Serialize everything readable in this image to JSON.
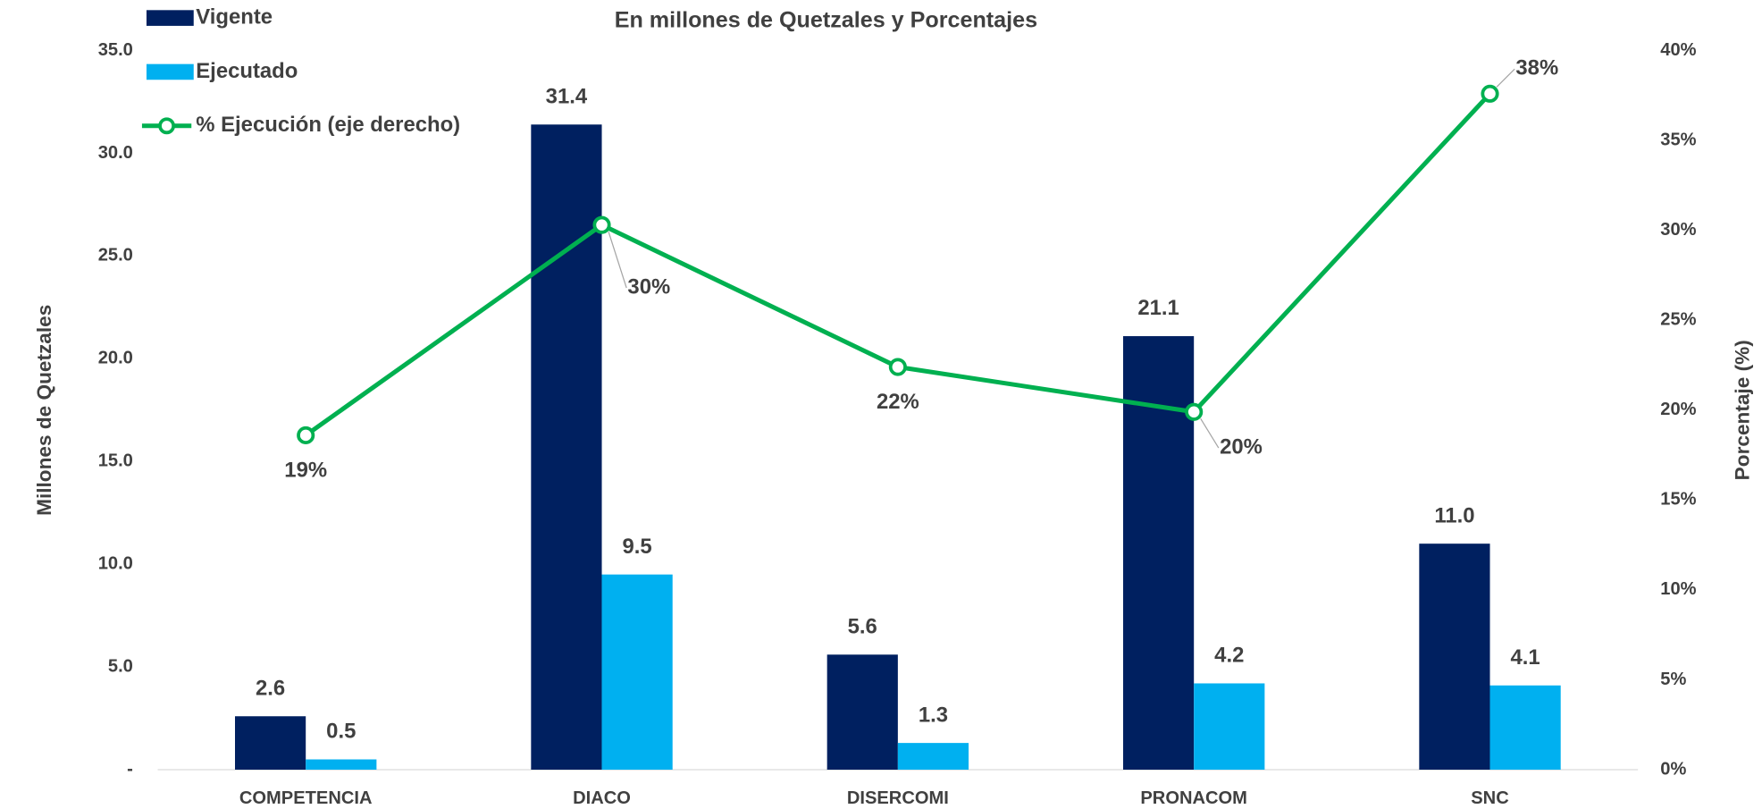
{
  "chart_data": {
    "type": "bar-line",
    "subtitle": "En millones de Quetzales y Porcentajes",
    "y_label": "Millones de Quetzales",
    "y2_label": "Porcentaje (%)",
    "categories": [
      "COMPETENCIA",
      "DIACO",
      "DISERCOMI",
      "PRONACOM",
      "SNC"
    ],
    "ylim": [
      0,
      35
    ],
    "yticks": [
      {
        "value": 0,
        "label": "-"
      },
      {
        "value": 5,
        "label": "5.0"
      },
      {
        "value": 10,
        "label": "10.0"
      },
      {
        "value": 15,
        "label": "15.0"
      },
      {
        "value": 20,
        "label": "20.0"
      },
      {
        "value": 25,
        "label": "25.0"
      },
      {
        "value": 30,
        "label": "30.0"
      },
      {
        "value": 35,
        "label": "35.0"
      }
    ],
    "y2lim": [
      0,
      40
    ],
    "y2ticks": [
      {
        "value": 0,
        "label": "0%"
      },
      {
        "value": 5,
        "label": "5%"
      },
      {
        "value": 10,
        "label": "10%"
      },
      {
        "value": 15,
        "label": "15%"
      },
      {
        "value": 20,
        "label": "20%"
      },
      {
        "value": 25,
        "label": "25%"
      },
      {
        "value": 30,
        "label": "30%"
      },
      {
        "value": 35,
        "label": "35%"
      },
      {
        "value": 40,
        "label": "40%"
      }
    ],
    "legend": "top-left",
    "series": [
      {
        "name": "Vigente",
        "type": "bar",
        "color": "#002060",
        "values": [
          2.6,
          31.4,
          5.6,
          21.1,
          11.0
        ],
        "value_labels": [
          "2.6",
          "31.4",
          "5.6",
          "21.1",
          "11.0"
        ]
      },
      {
        "name": "Ejecutado",
        "type": "bar",
        "color": "#00b0f0",
        "values": [
          0.5,
          9.5,
          1.3,
          4.2,
          4.1
        ],
        "value_labels": [
          "0.5",
          "9.5",
          "1.3",
          "4.2",
          "4.1"
        ]
      },
      {
        "name": "% Ejecución (eje derecho)",
        "type": "line",
        "axis": "y2",
        "color": "#00b050",
        "values": [
          18.6,
          30.3,
          22.4,
          19.9,
          37.6
        ],
        "value_labels": [
          "19%",
          "30%",
          "22%",
          "20%",
          "38%"
        ]
      }
    ]
  }
}
